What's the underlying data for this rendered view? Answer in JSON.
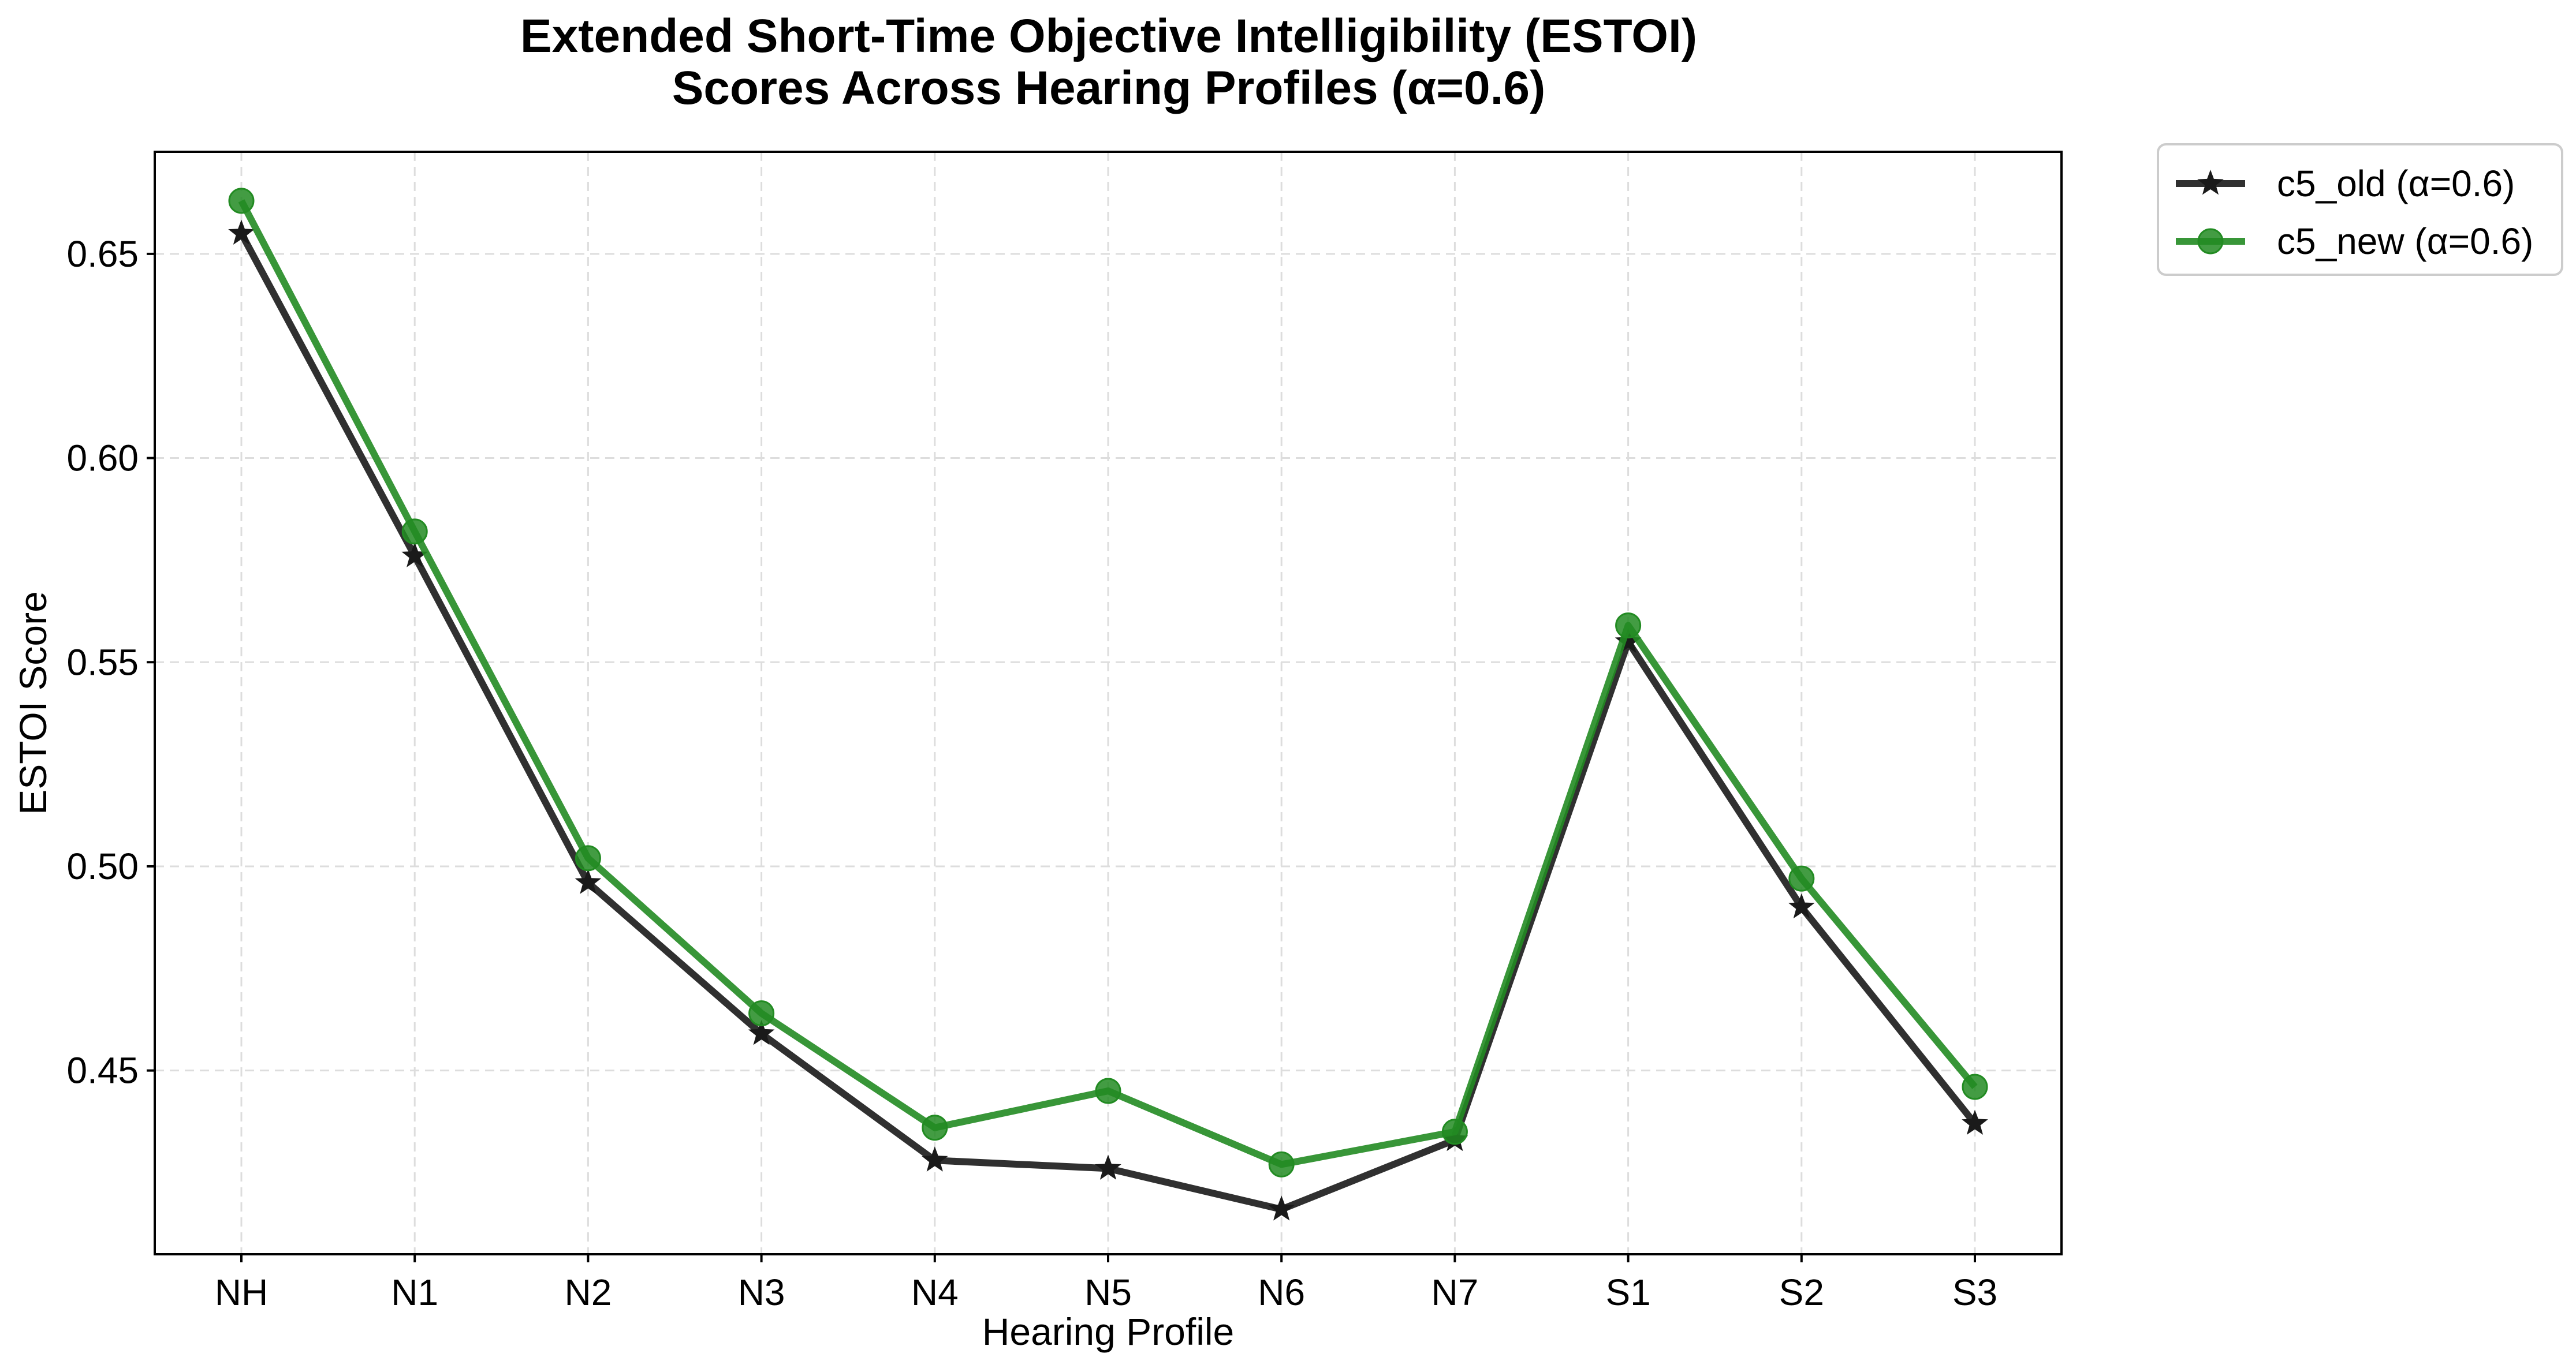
{
  "chart_data": {
    "type": "line",
    "title_lines": [
      "Extended Short-Time Objective Intelligibility (ESTOI)",
      "Scores Across Hearing Profiles (α=0.6)"
    ],
    "xlabel": "Hearing Profile",
    "ylabel": "ESTOI Score",
    "categories": [
      "NH",
      "N1",
      "N2",
      "N3",
      "N4",
      "N5",
      "N6",
      "N7",
      "S1",
      "S2",
      "S3"
    ],
    "ylim": [
      0.405,
      0.675
    ],
    "yticks": [
      0.45,
      0.5,
      0.55,
      0.6,
      0.65
    ],
    "ytick_labels": [
      "0.45",
      "0.50",
      "0.55",
      "0.60",
      "0.65"
    ],
    "grid": true,
    "legend_position": "outside-top-right",
    "series": [
      {
        "name": "c5_old (α=0.6)",
        "color": "#1a1a1a",
        "marker": "star",
        "values": [
          0.655,
          0.576,
          0.496,
          0.459,
          0.428,
          0.426,
          0.416,
          0.433,
          0.555,
          0.49,
          0.437
        ]
      },
      {
        "name": "c5_new (α=0.6)",
        "color": "#228b22",
        "marker": "circle",
        "values": [
          0.663,
          0.582,
          0.502,
          0.464,
          0.436,
          0.445,
          0.427,
          0.435,
          0.559,
          0.497,
          0.446
        ]
      }
    ]
  }
}
